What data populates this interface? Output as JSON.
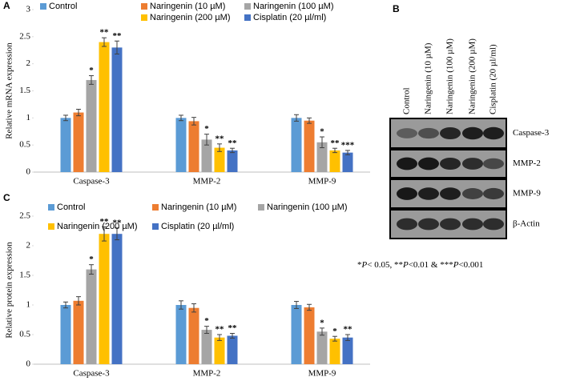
{
  "panels": [
    "A",
    "B",
    "C"
  ],
  "chart_data": [
    {
      "type": "bar",
      "ylabel": "Relative mRNA expression",
      "categories": [
        "Caspase-3",
        "MMP-2",
        "MMP-9"
      ],
      "ylim": [
        0,
        3
      ],
      "yticks": [
        0,
        0.5,
        1,
        1.5,
        2,
        2.5,
        3
      ],
      "series": [
        {
          "name": "Control",
          "color": "#5b9bd5",
          "values": [
            1.0,
            1.0,
            1.0
          ],
          "errors": [
            0.05,
            0.05,
            0.06
          ]
        },
        {
          "name": "Naringenin (10 µM)",
          "color": "#ed7d31",
          "values": [
            1.1,
            0.94,
            0.95
          ],
          "errors": [
            0.06,
            0.07,
            0.05
          ]
        },
        {
          "name": "Naringenin (100 µM)",
          "color": "#a5a5a5",
          "values": [
            1.7,
            0.6,
            0.55
          ],
          "errors": [
            0.08,
            0.1,
            0.1
          ],
          "stars": [
            "*",
            "*",
            "*"
          ]
        },
        {
          "name": "Naringenin (200 µM)",
          "color": "#ffc000",
          "values": [
            2.4,
            0.45,
            0.4
          ],
          "errors": [
            0.08,
            0.07,
            0.04
          ],
          "stars": [
            "**",
            "**",
            "**"
          ]
        },
        {
          "name": "Cisplatin (20 µl/ml)",
          "color": "#4472c4",
          "values": [
            2.3,
            0.4,
            0.36
          ],
          "errors": [
            0.12,
            0.04,
            0.04
          ],
          "stars": [
            "**",
            "**",
            "***"
          ]
        }
      ]
    },
    {
      "type": "bar",
      "ylabel": "Relative protein expression",
      "categories": [
        "Caspase-3",
        "MMP-2",
        "MMP-9"
      ],
      "ylim": [
        0,
        2.5
      ],
      "yticks": [
        0,
        0.5,
        1,
        1.5,
        2,
        2.5
      ],
      "series": [
        {
          "name": "Control",
          "color": "#5b9bd5",
          "values": [
            1.0,
            1.0,
            1.0
          ],
          "errors": [
            0.05,
            0.07,
            0.06
          ]
        },
        {
          "name": "Naringenin (10 µM)",
          "color": "#ed7d31",
          "values": [
            1.07,
            0.95,
            0.96
          ],
          "errors": [
            0.07,
            0.07,
            0.05
          ]
        },
        {
          "name": "Naringenin (100 µM)",
          "color": "#a5a5a5",
          "values": [
            1.6,
            0.58,
            0.55
          ],
          "errors": [
            0.08,
            0.06,
            0.06
          ],
          "stars": [
            "*",
            "*",
            "*"
          ]
        },
        {
          "name": "Naringenin (200 µM)",
          "color": "#ffc000",
          "values": [
            2.2,
            0.45,
            0.43
          ],
          "errors": [
            0.12,
            0.05,
            0.04
          ],
          "stars": [
            "**",
            "**",
            "*"
          ]
        },
        {
          "name": "Cisplatin (20 µl/ml)",
          "color": "#4472c4",
          "values": [
            2.2,
            0.48,
            0.45
          ],
          "errors": [
            0.1,
            0.04,
            0.05
          ],
          "stars": [
            "**",
            "**",
            "**"
          ]
        }
      ]
    }
  ],
  "blot": {
    "lanes": [
      "Control",
      "Naringenin (10 µM)",
      "Naringenin (100 µM)",
      "Naringenin (200 µM)",
      "Cisplatin (20 µl/ml)"
    ],
    "bands": [
      "Caspase-3",
      "MMP-2",
      "MMP-9",
      "β-Actin"
    ]
  },
  "footnote": [
    "*",
    "P",
    "< 0.05, **",
    "P",
    "<0.01 & ***",
    "P",
    "<0.001"
  ]
}
